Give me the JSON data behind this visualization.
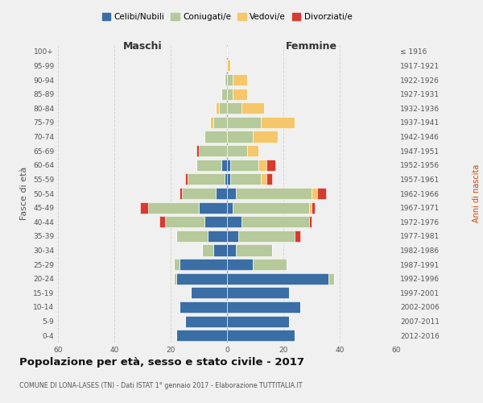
{
  "age_groups_bottom_to_top": [
    "0-4",
    "5-9",
    "10-14",
    "15-19",
    "20-24",
    "25-29",
    "30-34",
    "35-39",
    "40-44",
    "45-49",
    "50-54",
    "55-59",
    "60-64",
    "65-69",
    "70-74",
    "75-79",
    "80-84",
    "85-89",
    "90-94",
    "95-99",
    "100+"
  ],
  "birth_years_bottom_to_top": [
    "2012-2016",
    "2007-2011",
    "2002-2006",
    "1997-2001",
    "1992-1996",
    "1987-1991",
    "1982-1986",
    "1977-1981",
    "1972-1976",
    "1967-1971",
    "1962-1966",
    "1957-1961",
    "1952-1956",
    "1947-1951",
    "1942-1946",
    "1937-1941",
    "1932-1936",
    "1927-1931",
    "1922-1926",
    "1917-1921",
    "≤ 1916"
  ],
  "maschi": {
    "celibi": [
      18,
      15,
      17,
      13,
      18,
      17,
      5,
      7,
      8,
      10,
      4,
      1,
      2,
      0,
      0,
      0,
      0,
      0,
      0,
      0,
      0
    ],
    "coniugati": [
      0,
      0,
      0,
      0,
      1,
      2,
      4,
      11,
      14,
      18,
      12,
      13,
      9,
      10,
      8,
      5,
      3,
      2,
      1,
      0,
      0
    ],
    "vedovi": [
      0,
      0,
      0,
      0,
      0,
      0,
      0,
      0,
      0,
      0,
      0,
      0,
      0,
      0,
      0,
      1,
      1,
      0,
      0,
      0,
      0
    ],
    "divorziati": [
      0,
      0,
      0,
      0,
      0,
      0,
      0,
      0,
      2,
      3,
      1,
      1,
      0,
      1,
      0,
      0,
      0,
      0,
      0,
      0,
      0
    ]
  },
  "femmine": {
    "nubili": [
      24,
      22,
      26,
      22,
      36,
      9,
      3,
      4,
      5,
      2,
      3,
      1,
      1,
      0,
      0,
      0,
      0,
      0,
      0,
      0,
      0
    ],
    "coniugate": [
      0,
      0,
      0,
      0,
      2,
      12,
      13,
      20,
      24,
      27,
      27,
      11,
      10,
      7,
      9,
      12,
      5,
      2,
      2,
      0,
      0
    ],
    "vedove": [
      0,
      0,
      0,
      0,
      0,
      0,
      0,
      0,
      0,
      1,
      2,
      2,
      3,
      4,
      9,
      12,
      8,
      5,
      5,
      1,
      0
    ],
    "divorziate": [
      0,
      0,
      0,
      0,
      0,
      0,
      0,
      2,
      1,
      1,
      3,
      2,
      3,
      0,
      0,
      0,
      0,
      0,
      0,
      0,
      0
    ]
  },
  "colors": {
    "celibi": "#3a6ea5",
    "coniugati": "#b5c99a",
    "vedovi": "#f5c76a",
    "divorziati": "#d63b2f"
  },
  "xlim": 60,
  "title": "Popolazione per età, sesso e stato civile - 2017",
  "subtitle": "COMUNE DI LONA-LASES (TN) - Dati ISTAT 1° gennaio 2017 - Elaborazione TUTTITALIA.IT",
  "ylabel_left": "Fasce di età",
  "ylabel_right": "Anni di nascita",
  "xlabel_maschi": "Maschi",
  "xlabel_femmine": "Femmine",
  "legend_labels": [
    "Celibi/Nubili",
    "Coniugati/e",
    "Vedovi/e",
    "Divorziati/e"
  ],
  "background_color": "#f0f0f0"
}
